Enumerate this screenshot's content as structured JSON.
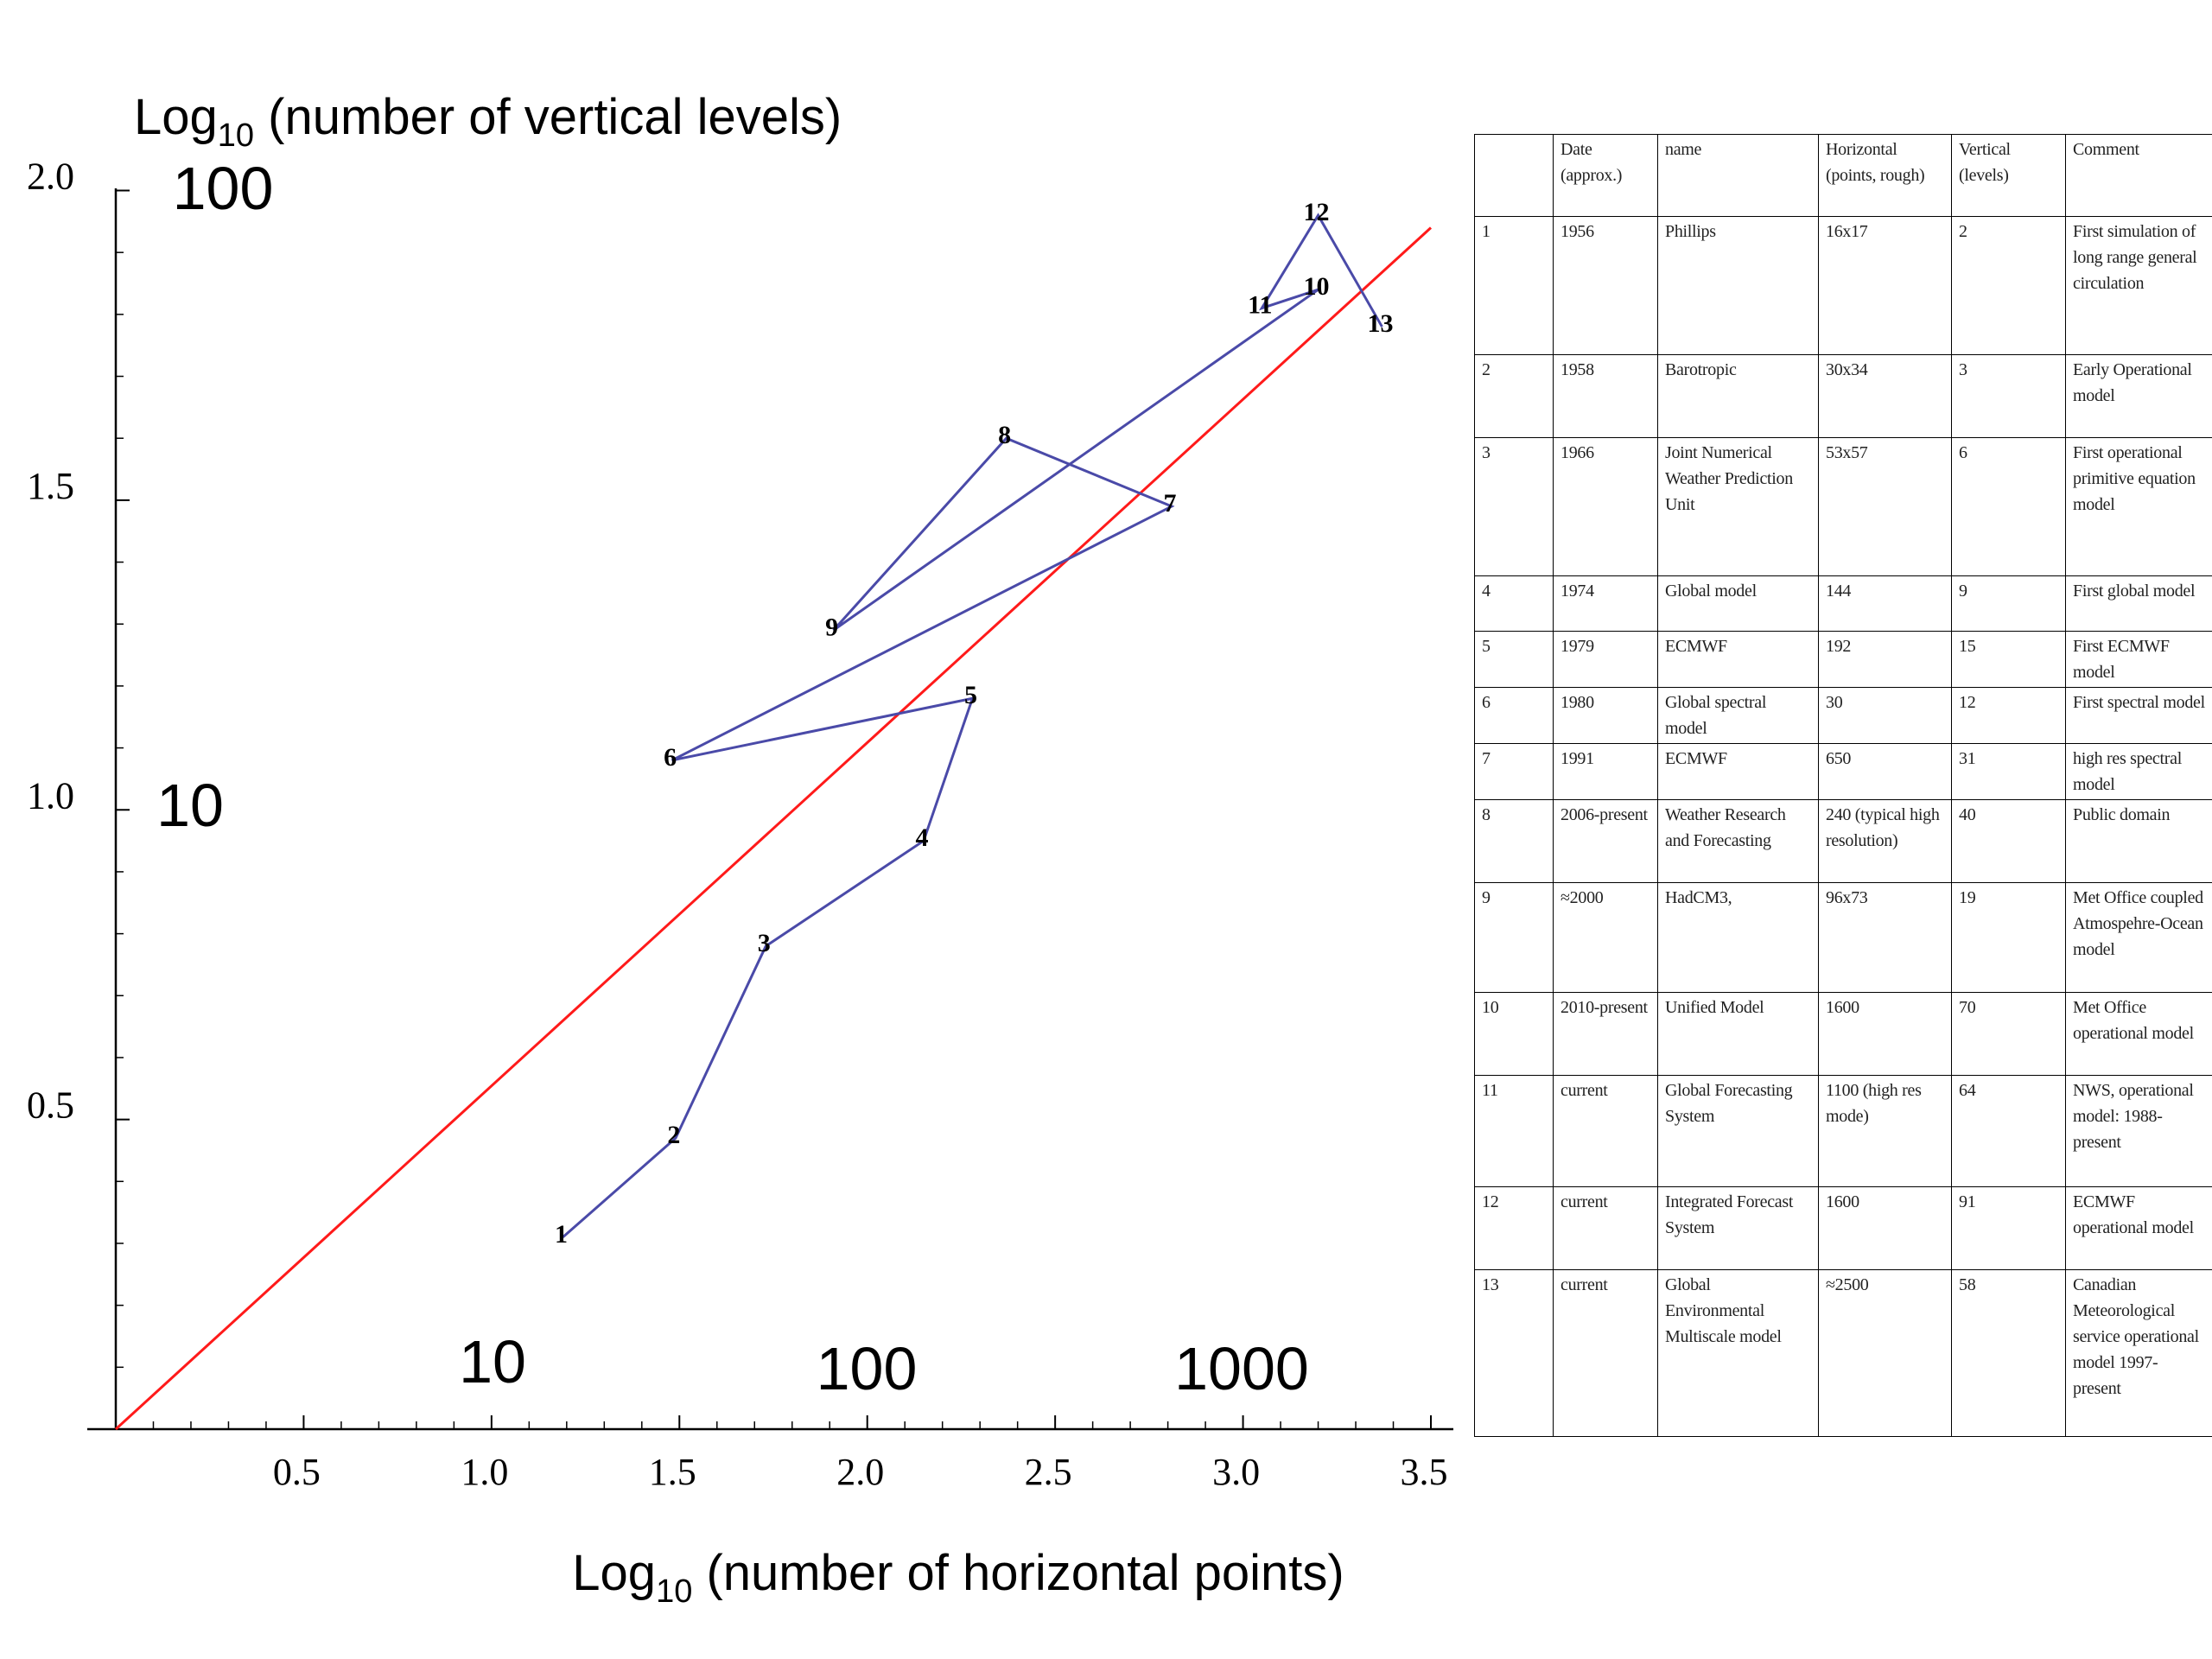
{
  "chart_data": {
    "type": "line",
    "ylabel": [
      "Log",
      "10",
      " (number of vertical levels)"
    ],
    "xlabel": [
      "Log",
      "10",
      " (number of horizontal points)"
    ],
    "xlim": [
      0,
      3.5
    ],
    "ylim": [
      0,
      2
    ],
    "xticks": [
      0.5,
      {
        "value": 1,
        "label": "1.0"
      },
      1.5,
      {
        "value": 2,
        "label": "2.0"
      },
      2.5,
      {
        "value": 3,
        "label": "3.0"
      },
      3.5
    ],
    "yticks": [
      0.5,
      {
        "value": 1,
        "label": "1.0"
      },
      1.5,
      {
        "value": 2,
        "label": "2.0"
      }
    ],
    "xminorticks": [
      0.1,
      0.2,
      0.3,
      0.4,
      0.6,
      0.7,
      0.8,
      0.9,
      1.1,
      1.2,
      1.3,
      1.4,
      1.6,
      1.7,
      1.8,
      1.9,
      2.1,
      2.2,
      2.3,
      2.4,
      2.6,
      2.7,
      2.8,
      2.9,
      3.1,
      3.2,
      3.3,
      3.4
    ],
    "yminorticks": [
      0.1,
      0.2,
      0.3,
      0.4,
      0.6,
      0.7,
      0.8,
      0.9,
      1.1,
      1.2,
      1.3,
      1.4,
      1.6,
      1.7,
      1.8,
      1.9
    ],
    "series": [
      {
        "color": "#4a4aa8",
        "x": [
          1.19,
          1.49,
          1.73,
          2.15,
          2.28,
          1.48,
          2.81,
          2.37,
          1.91,
          3.2,
          3.05,
          3.2,
          3.37
        ],
        "values": [
          0.31,
          0.47,
          0.78,
          0.95,
          1.18,
          1.08,
          1.49,
          1.6,
          1.29,
          1.84,
          1.81,
          1.96,
          1.78
        ],
        "point_labels": [
          "1",
          "2",
          "3",
          "4",
          "5",
          "6",
          "7",
          "8",
          "9",
          "10",
          "11",
          "12",
          "13"
        ]
      },
      {
        "color": "#ff1a1a",
        "x": [
          0,
          3.5
        ],
        "values": [
          0,
          1.94
        ]
      }
    ],
    "annotations": [
      "100",
      "10",
      "10",
      "100",
      "1000"
    ]
  },
  "table": {
    "header": [
      "Date (approx.)",
      "name",
      "Horizontal (points, rough)",
      "Vertical (levels)",
      "Comment"
    ],
    "rows": [
      [
        "1",
        "1956",
        "Phillips",
        "16x17",
        "2",
        "First simulation of long range general circulation"
      ],
      [
        "2",
        "1958",
        "Barotropic",
        "30x34",
        "3",
        "Early Operational model"
      ],
      [
        "3",
        "1966",
        "Joint Numerical Weather Prediction Unit",
        "53x57",
        "6",
        "First operational primitive equation model"
      ],
      [
        "4",
        "1974",
        "Global model",
        "144",
        "9",
        "First global model"
      ],
      [
        "5",
        "1979",
        "ECMWF",
        "192",
        "15",
        "First ECMWF model"
      ],
      [
        "6",
        "1980",
        "Global spectral model",
        "30",
        "12",
        "First spectral model"
      ],
      [
        "7",
        "1991",
        "ECMWF",
        "650",
        "31",
        "high res spectral model"
      ],
      [
        "8",
        "2006-present",
        "Weather Research and Forecasting",
        "240 (typical high resolution)",
        "40",
        "Public domain"
      ],
      [
        "9",
        "≈2000",
        "HadCM3,",
        "96x73",
        "19",
        "Met Office coupled Atmospehre-Ocean model"
      ],
      [
        "10",
        "2010-present",
        "Unified Model",
        "1600",
        "70",
        "Met Office operational model"
      ],
      [
        "11",
        "current",
        "Global Forecasting System",
        "1100 (high res mode)",
        "64",
        "NWS, operational model: 1988-present"
      ],
      [
        "12",
        "current",
        "Integrated Forecast System",
        "1600",
        "91",
        "ECMWF operational model"
      ],
      [
        "13",
        "current",
        "Global Environmental Multiscale model",
        "≈2500",
        "58",
        "Canadian Meteorological service operational model 1997-present"
      ]
    ]
  }
}
